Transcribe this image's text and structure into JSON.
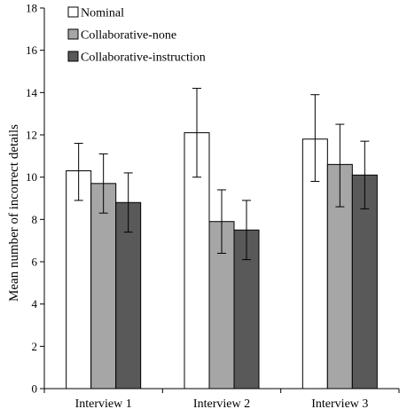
{
  "chart_data": {
    "type": "bar",
    "title": "",
    "xlabel": "",
    "ylabel": "Mean number of incorrect details",
    "ylim": [
      0,
      18
    ],
    "yticks": [
      0,
      2,
      4,
      6,
      8,
      10,
      12,
      14,
      16,
      18
    ],
    "categories": [
      "Interview 1",
      "Interview 2",
      "Interview 3"
    ],
    "series": [
      {
        "name": "Nominal",
        "color": "#ffffff",
        "values": [
          10.3,
          12.1,
          11.8
        ],
        "error_low": [
          8.9,
          10.0,
          9.8
        ],
        "error_high": [
          11.6,
          14.2,
          13.9
        ]
      },
      {
        "name": "Collaborative-none",
        "color": "#a6a6a6",
        "values": [
          9.7,
          7.9,
          10.6
        ],
        "error_low": [
          8.3,
          6.4,
          8.6
        ],
        "error_high": [
          11.1,
          9.4,
          12.5
        ]
      },
      {
        "name": "Collaborative-instruction",
        "color": "#595959",
        "values": [
          8.8,
          7.5,
          10.1
        ],
        "error_low": [
          7.4,
          6.1,
          8.5
        ],
        "error_high": [
          10.2,
          8.9,
          11.7
        ]
      }
    ],
    "legend_position": "top-left",
    "grid": false
  }
}
